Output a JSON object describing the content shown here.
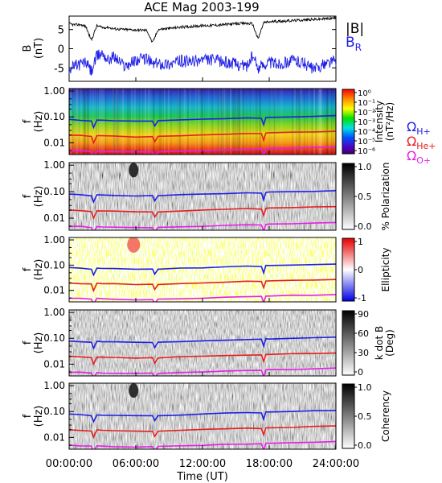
{
  "title": "ACE Mag 2003-199",
  "chart_data": [
    {
      "type": "line",
      "panel": "magnetic-field",
      "ylabel": "B",
      "yunit": "(nT)",
      "ylim": [
        -8.5,
        8.5
      ],
      "yticks": [
        5,
        0,
        -5
      ],
      "xlim": [
        0,
        24
      ],
      "series": [
        {
          "name": "|B|",
          "color": "#000000",
          "x": [
            0,
            0.5,
            1,
            1.5,
            2,
            2.5,
            3,
            3.5,
            4,
            5,
            6,
            7,
            7.5,
            8,
            9,
            10,
            11,
            12,
            13,
            14,
            15,
            16,
            16.5,
            17,
            17.5,
            18,
            19,
            20,
            21,
            22,
            23,
            24
          ],
          "y": [
            6.5,
            6.2,
            6.3,
            5.8,
            2.2,
            6.0,
            5.5,
            5.6,
            5.2,
            5.0,
            4.9,
            4.8,
            1.5,
            5.0,
            5.3,
            5.6,
            5.8,
            6.0,
            6.1,
            6.3,
            6.5,
            6.6,
            6.5,
            2.5,
            6.8,
            7.0,
            7.2,
            7.3,
            7.5,
            7.6,
            7.8,
            8.0
          ]
        },
        {
          "name": "B",
          "subscript": "R",
          "color": "#1f1fe6",
          "x": [
            0,
            0.5,
            1,
            1.5,
            2,
            2.5,
            3,
            3.5,
            4,
            5,
            6,
            7,
            7.5,
            8,
            9,
            10,
            11,
            12,
            13,
            14,
            15,
            16,
            16.5,
            17,
            17.5,
            18,
            19,
            20,
            21,
            22,
            23,
            24
          ],
          "y": [
            -5.2,
            -4.5,
            -4.0,
            -3.5,
            -6.0,
            -2.0,
            -1.0,
            -3.0,
            -2.0,
            -4.5,
            -3.0,
            -2.5,
            -4.0,
            -3.8,
            -4.0,
            -3.2,
            -3.5,
            -2.8,
            -3.0,
            -3.5,
            -4.0,
            -4.5,
            -2.0,
            -5.0,
            -4.0,
            -3.5,
            -4.0,
            -3.0,
            -3.5,
            -5.5,
            -4.0,
            -3.0
          ]
        }
      ]
    },
    {
      "type": "heatmap",
      "panel": "intensity",
      "ylabel": "f",
      "yunit": "(Hz)",
      "yscale": "log",
      "ylim": [
        0.004,
        1.2
      ],
      "colorbar": {
        "label": "Intensity",
        "unit": "(nT²/Hz)",
        "scale": "log",
        "ticks": [
          "10⁰",
          "10⁻¹",
          "10⁻²",
          "10⁻³",
          "10⁻⁴",
          "10⁻⁵",
          "10⁻⁶"
        ],
        "colormap": "rainbow"
      }
    },
    {
      "type": "heatmap",
      "panel": "polarization",
      "ylabel": "f",
      "yunit": "(Hz)",
      "yscale": "log",
      "colorbar": {
        "label": "% Polarization",
        "ticks": [
          "1.0",
          "0.5",
          "0.0"
        ],
        "colormap": "gray"
      }
    },
    {
      "type": "heatmap",
      "panel": "ellipticity",
      "ylabel": "f",
      "yunit": "(Hz)",
      "yscale": "log",
      "colorbar": {
        "label": "Ellipticity",
        "ticks": [
          "1",
          "0",
          "-1"
        ],
        "colormap": "red-white-blue"
      }
    },
    {
      "type": "heatmap",
      "panel": "k-dot-b",
      "ylabel": "f",
      "yunit": "(Hz)",
      "yscale": "log",
      "colorbar": {
        "label": "k dot B",
        "unit": "(Deg)",
        "ticks": [
          "90",
          "60",
          "30",
          "0"
        ],
        "colormap": "gray"
      }
    },
    {
      "type": "heatmap",
      "panel": "coherency",
      "ylabel": "f",
      "yunit": "(Hz)",
      "yscale": "log",
      "colorbar": {
        "label": "Coherency",
        "ticks": [
          "1.0",
          "0.5",
          "0.0"
        ],
        "colormap": "gray"
      }
    }
  ],
  "freq_ticks": [
    "1.00",
    "0.10",
    "0.01"
  ],
  "gyrofrequencies": [
    {
      "symbol": "Ω",
      "subscript": "H+",
      "color": "#1f1fe6",
      "x": [
        0,
        1,
        2,
        2.2,
        2.5,
        3,
        4,
        6,
        7.5,
        7.7,
        8,
        10,
        12,
        14,
        16,
        17.3,
        17.5,
        17.7,
        18,
        20,
        22,
        24
      ],
      "f": [
        0.08,
        0.075,
        0.07,
        0.04,
        0.075,
        0.074,
        0.072,
        0.068,
        0.07,
        0.045,
        0.07,
        0.075,
        0.08,
        0.085,
        0.09,
        0.09,
        0.05,
        0.095,
        0.095,
        0.1,
        0.105,
        0.11
      ]
    },
    {
      "symbol": "Ω",
      "subscript": "He+",
      "color": "#e61f1f",
      "x": [
        0,
        1,
        2,
        2.2,
        2.5,
        3,
        4,
        6,
        7.5,
        7.7,
        8,
        10,
        12,
        14,
        16,
        17.3,
        17.5,
        17.7,
        18,
        20,
        22,
        24
      ],
      "f": [
        0.02,
        0.019,
        0.018,
        0.01,
        0.019,
        0.0185,
        0.018,
        0.017,
        0.0175,
        0.011,
        0.0175,
        0.019,
        0.02,
        0.021,
        0.0225,
        0.0225,
        0.0125,
        0.024,
        0.024,
        0.025,
        0.026,
        0.0275
      ]
    },
    {
      "symbol": "Ω",
      "subscript": "O+",
      "color": "#e61fe6",
      "x": [
        0,
        1,
        2,
        2.2,
        2.5,
        3,
        4,
        6,
        7.5,
        7.7,
        8,
        10,
        12,
        14,
        16,
        17.3,
        17.5,
        17.7,
        18,
        20,
        22,
        24
      ],
      "f": [
        0.005,
        0.0048,
        0.0045,
        0.0028,
        0.0048,
        0.0046,
        0.0045,
        0.0043,
        0.0044,
        0.003,
        0.0044,
        0.0047,
        0.005,
        0.0053,
        0.0056,
        0.0056,
        0.0032,
        0.006,
        0.006,
        0.0063,
        0.0066,
        0.0069
      ]
    }
  ],
  "x_axis": {
    "label": "Time (UT)",
    "ticks": [
      {
        "value": 0,
        "label": "00:00:00"
      },
      {
        "value": 6,
        "label": "06:00:00"
      },
      {
        "value": 12,
        "label": "12:00:00"
      },
      {
        "value": 18,
        "label": "18:00:00"
      },
      {
        "value": 24,
        "label": "24:00:00"
      }
    ]
  },
  "colors": {
    "hplus": "#1f1fe6",
    "heplus": "#e61f1f",
    "oplus": "#e61fe6",
    "bmag": "#000000",
    "br": "#1f1fe6"
  }
}
